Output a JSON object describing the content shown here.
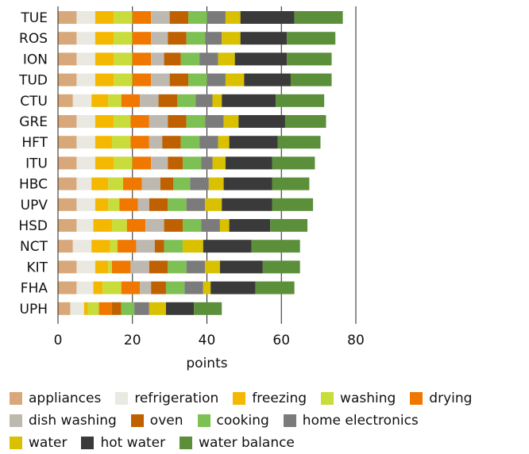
{
  "chart_data": {
    "type": "bar",
    "orientation": "horizontal",
    "stacked": true,
    "xlabel": "points",
    "ylabel": "",
    "title": "",
    "xlim": [
      0,
      80
    ],
    "xticks": [
      0,
      20,
      40,
      60,
      80
    ],
    "grid": "vertical major gridlines",
    "legend_position": "bottom",
    "categories": [
      "TUE",
      "ROS",
      "ION",
      "TUD",
      "CTU",
      "GRE",
      "HFT",
      "ITU",
      "HBC",
      "UPV",
      "HSD",
      "NCT",
      "KIT",
      "FHA",
      "UPH"
    ],
    "series": [
      {
        "name": "appliances",
        "color": "#d9a87a",
        "values": [
          5.0,
          5.0,
          5.0,
          5.0,
          4.0,
          5.0,
          5.0,
          5.0,
          5.0,
          5.0,
          5.0,
          4.0,
          5.0,
          5.0,
          3.3
        ]
      },
      {
        "name": "refrigeration",
        "color": "#e9e9e2",
        "values": [
          5.0,
          5.0,
          5.0,
          5.0,
          5.0,
          5.0,
          5.0,
          5.0,
          4.0,
          5.0,
          4.5,
          5.0,
          5.0,
          4.5,
          3.7
        ]
      },
      {
        "name": "freezing",
        "color": "#f5b800",
        "values": [
          5.0,
          5.0,
          5.0,
          5.0,
          4.5,
          5.0,
          4.5,
          5.0,
          4.5,
          3.5,
          5.0,
          5.0,
          3.5,
          2.5,
          1.0
        ]
      },
      {
        "name": "washing",
        "color": "#c8dc3c",
        "values": [
          5.0,
          5.0,
          5.0,
          5.0,
          3.5,
          4.5,
          5.0,
          5.0,
          4.0,
          3.0,
          4.0,
          2.0,
          1.0,
          5.0,
          3.0
        ]
      },
      {
        "name": "drying",
        "color": "#f07800",
        "values": [
          5.0,
          5.0,
          5.0,
          5.0,
          5.0,
          5.0,
          5.0,
          5.0,
          5.0,
          5.0,
          5.0,
          5.0,
          5.0,
          5.0,
          3.5
        ]
      },
      {
        "name": "dish washing",
        "color": "#bdb8b0",
        "values": [
          5.0,
          4.5,
          3.5,
          5.0,
          5.0,
          5.0,
          3.5,
          4.5,
          5.0,
          3.0,
          5.0,
          5.0,
          5.0,
          3.0,
          0.0
        ]
      },
      {
        "name": "oven",
        "color": "#bf6100",
        "values": [
          5.0,
          5.0,
          4.5,
          5.0,
          5.0,
          5.0,
          5.0,
          4.0,
          3.5,
          5.0,
          5.0,
          2.5,
          5.0,
          4.0,
          2.5
        ]
      },
      {
        "name": "cooking",
        "color": "#7dc053",
        "values": [
          5.0,
          5.0,
          5.0,
          5.0,
          5.0,
          5.0,
          5.0,
          5.0,
          4.5,
          5.0,
          5.0,
          5.0,
          5.0,
          5.0,
          3.5
        ]
      },
      {
        "name": "home electronics",
        "color": "#7b7b7b",
        "values": [
          5.0,
          4.5,
          5.0,
          5.0,
          4.5,
          5.0,
          5.0,
          3.0,
          5.0,
          5.0,
          5.0,
          0.0,
          5.0,
          5.0,
          4.0
        ]
      },
      {
        "name": "water",
        "color": "#d9c100",
        "values": [
          4.0,
          5.0,
          4.5,
          5.0,
          2.5,
          4.0,
          3.0,
          3.5,
          4.0,
          4.5,
          2.5,
          5.5,
          4.0,
          2.0,
          4.5
        ]
      },
      {
        "name": "hot water",
        "color": "#3a3a3a",
        "values": [
          14.5,
          12.5,
          14.0,
          12.5,
          14.5,
          12.5,
          13.0,
          12.5,
          13.0,
          13.5,
          11.0,
          13.0,
          11.5,
          12.0,
          7.5
        ]
      },
      {
        "name": "water balance",
        "color": "#5b8f3a",
        "values": [
          13.0,
          13.0,
          12.0,
          11.0,
          13.0,
          11.0,
          11.5,
          11.5,
          10.0,
          11.0,
          10.0,
          13.0,
          10.0,
          10.5,
          7.5
        ]
      }
    ]
  }
}
